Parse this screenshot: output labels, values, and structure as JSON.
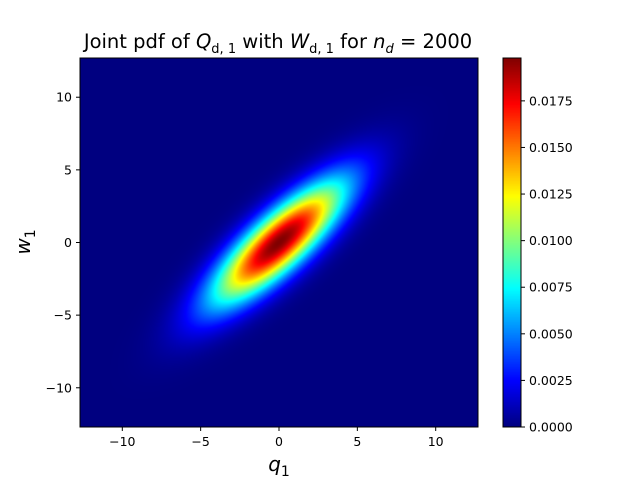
{
  "chart_data": {
    "type": "heatmap",
    "title": {
      "prefix": "Joint pdf of ",
      "q_var": "Q",
      "q_sub": "d, 1",
      "mid": " with ",
      "w_var": "W",
      "w_sub": "d, 1",
      "post": " for ",
      "n_var": "n",
      "n_sub": "d",
      "n_val": " = 2000"
    },
    "xlabel": {
      "var": "q",
      "sub": "1"
    },
    "ylabel": {
      "var": "w",
      "sub": "1"
    },
    "xlim": [
      -12.7,
      12.7
    ],
    "ylim": [
      -12.7,
      12.7
    ],
    "xticks": [
      -10,
      -5,
      0,
      5,
      10
    ],
    "yticks": [
      -10,
      -5,
      0,
      5,
      10
    ],
    "xtick_labels": [
      "−10",
      "−5",
      "0",
      "5",
      "10"
    ],
    "ytick_labels": [
      "−10",
      "−5",
      "0",
      "5",
      "10"
    ],
    "colormap": "jet",
    "colorbar": {
      "range": [
        0,
        0.0198
      ],
      "ticks": [
        0,
        0.0025,
        0.005,
        0.0075,
        0.01,
        0.0125,
        0.015,
        0.0175
      ],
      "tick_labels": [
        "0.0000",
        "0.0025",
        "0.0050",
        "0.0075",
        "0.0100",
        "0.0125",
        "0.0150",
        "0.0175"
      ]
    },
    "distribution": {
      "shape": "bivariate normal",
      "mean": [
        0,
        0
      ],
      "covariance": [
        [
          8.5,
          7.0
        ],
        [
          7.0,
          8.5
        ]
      ],
      "peak_density": 0.0198
    }
  }
}
